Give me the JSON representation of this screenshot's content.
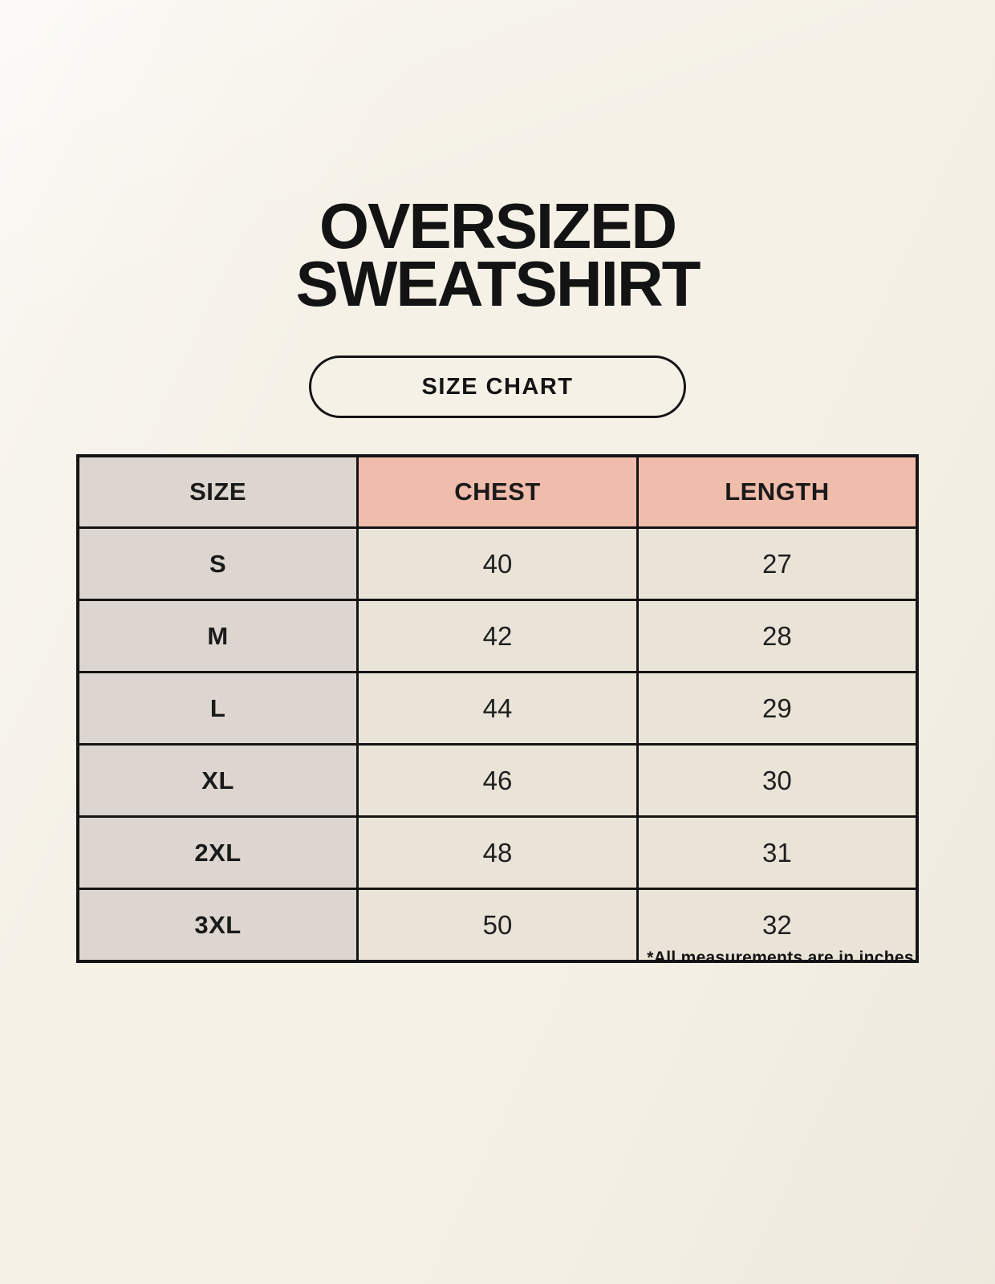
{
  "header": {
    "title_line1": "OVERSIZED",
    "title_line2": "SWEATSHIRT",
    "badge_label": "SIZE CHART"
  },
  "chart_data": {
    "type": "table",
    "title": "OVERSIZED SWEATSHIRT SIZE CHART",
    "columns": [
      "SIZE",
      "CHEST",
      "LENGTH"
    ],
    "rows": [
      [
        "S",
        "40",
        "27"
      ],
      [
        "M",
        "42",
        "28"
      ],
      [
        "L",
        "44",
        "29"
      ],
      [
        "XL",
        "46",
        "30"
      ],
      [
        "2XL",
        "48",
        "31"
      ],
      [
        "3XL",
        "50",
        "32"
      ]
    ],
    "units": "inches"
  },
  "footnote": "*All measurements are in inches.",
  "colors": {
    "background": "#f5f1e7",
    "accent_header_bg": "#f0bcab",
    "label_column_bg": "#ddd6d0",
    "value_cell_bg": "#eae4d8",
    "table_border": "#141414",
    "text": "#171717"
  }
}
